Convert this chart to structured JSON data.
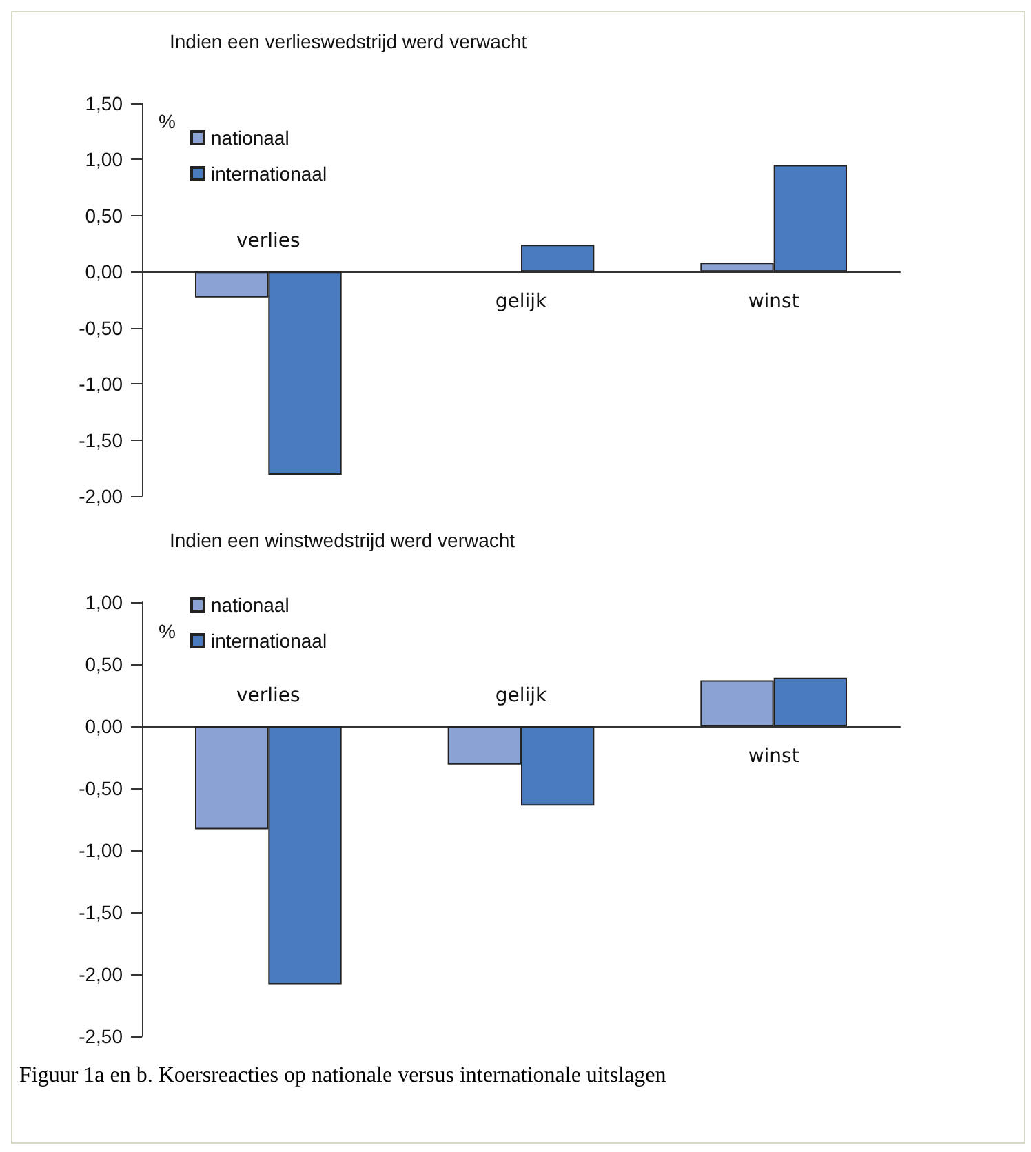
{
  "chart_data": [
    {
      "type": "bar",
      "title": "Indien een verlieswedstrijd werd verwacht",
      "ylabel": "%",
      "categories": [
        "verlies",
        "gelijk",
        "winst"
      ],
      "series": [
        {
          "name": "nationaal",
          "color": "#8aa2d4",
          "values": [
            -0.23,
            null,
            0.08
          ]
        },
        {
          "name": "internationaal",
          "color": "#4a7bbf",
          "values": [
            -1.81,
            0.24,
            0.95
          ]
        }
      ],
      "ylim": [
        -2,
        1.5
      ],
      "yticks": [
        {
          "value": -2,
          "label": "-2,00"
        },
        {
          "value": -1.5,
          "label": "-1,50"
        },
        {
          "value": -1,
          "label": "-1,00"
        },
        {
          "value": -0.5,
          "label": "-0,50"
        },
        {
          "value": 0,
          "label": "0,00"
        },
        {
          "value": 0.5,
          "label": "0,50"
        },
        {
          "value": 1,
          "label": "1,00"
        },
        {
          "value": 1.5,
          "label": "1,50"
        }
      ],
      "legend": "top left",
      "grid": false
    },
    {
      "type": "bar",
      "title": "Indien een winstwedstrijd werd verwacht",
      "ylabel": "%",
      "categories": [
        "verlies",
        "gelijk",
        "winst"
      ],
      "series": [
        {
          "name": "nationaal",
          "color": "#8aa2d4",
          "values": [
            -0.83,
            -0.31,
            0.37
          ]
        },
        {
          "name": "internationaal",
          "color": "#4a7bbf",
          "values": [
            -2.08,
            -0.64,
            0.39
          ]
        }
      ],
      "ylim": [
        -2.5,
        1
      ],
      "yticks": [
        {
          "value": -2.5,
          "label": "-2,50"
        },
        {
          "value": -2,
          "label": "-2,00"
        },
        {
          "value": -1.5,
          "label": "-1,50"
        },
        {
          "value": -1,
          "label": "-1,00"
        },
        {
          "value": -0.5,
          "label": "-0,50"
        },
        {
          "value": 0,
          "label": "0,00"
        },
        {
          "value": 0.5,
          "label": "0,50"
        },
        {
          "value": 1,
          "label": "1,00"
        }
      ],
      "legend": "top left",
      "grid": false,
      "annotations": [
        "Figuur 1a en b. Koersreacties op nationale versus internationale uitslagen"
      ]
    }
  ]
}
